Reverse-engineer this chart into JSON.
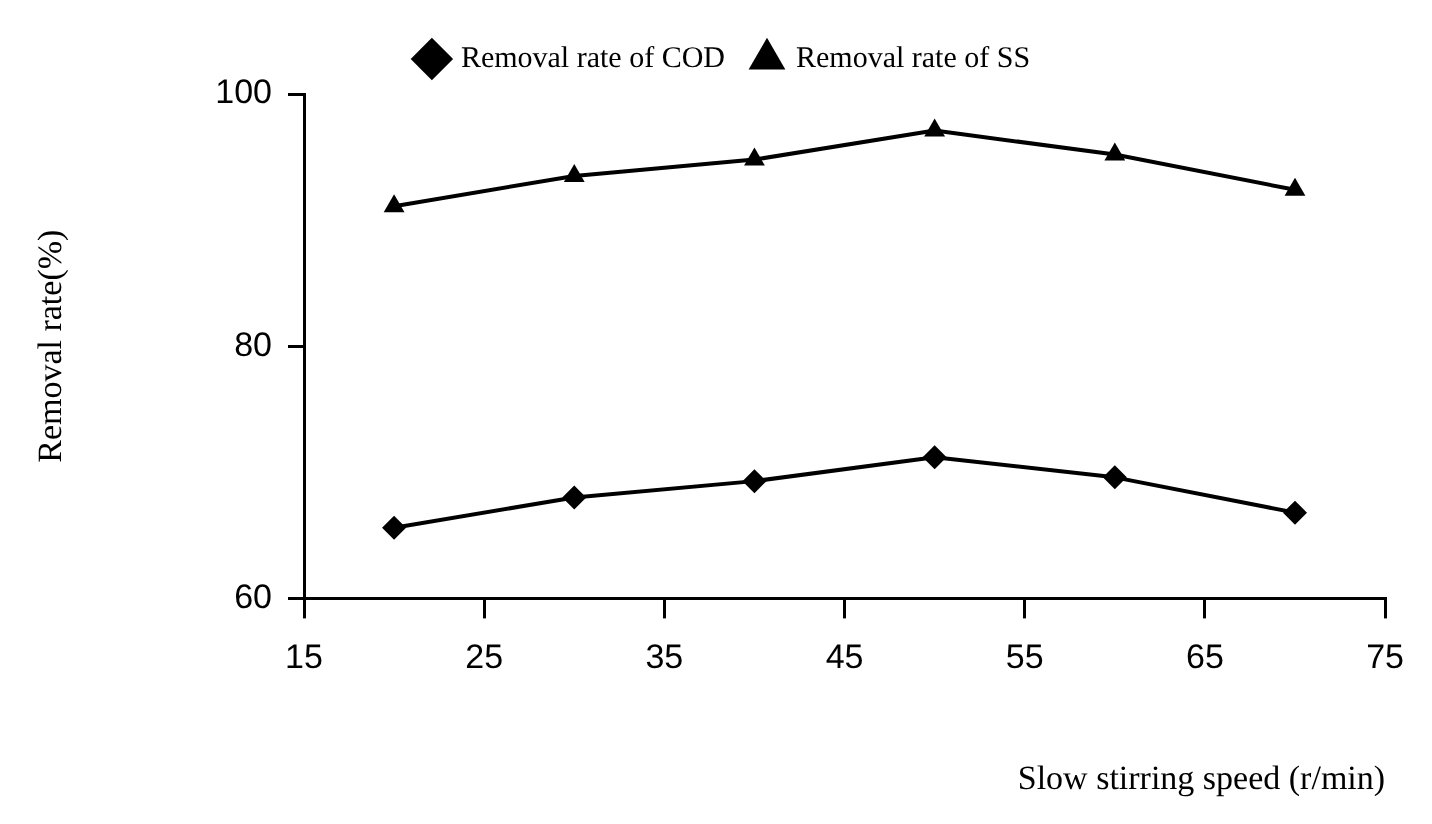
{
  "chart_data": {
    "type": "line",
    "xlabel": "Slow stirring speed (r/min)",
    "ylabel": "Removal rate(%)",
    "x": [
      20,
      30,
      40,
      50,
      60,
      70
    ],
    "xlim": [
      15,
      75
    ],
    "xticks": [
      15,
      25,
      35,
      45,
      55,
      65,
      75
    ],
    "ylim": [
      60,
      100
    ],
    "yticks": [
      60,
      80,
      100
    ],
    "grid": false,
    "legend": "top",
    "line_style": "solid",
    "series": [
      {
        "name": "Removal rate of COD",
        "color": "#000000",
        "marker": "diamond",
        "values": [
          65.6,
          68.0,
          69.3,
          71.2,
          69.6,
          66.8
        ]
      },
      {
        "name": "Removal rate of SS",
        "color": "#000000",
        "marker": "triangle",
        "values": [
          91.1,
          93.5,
          94.8,
          97.1,
          95.2,
          92.4
        ]
      }
    ]
  }
}
